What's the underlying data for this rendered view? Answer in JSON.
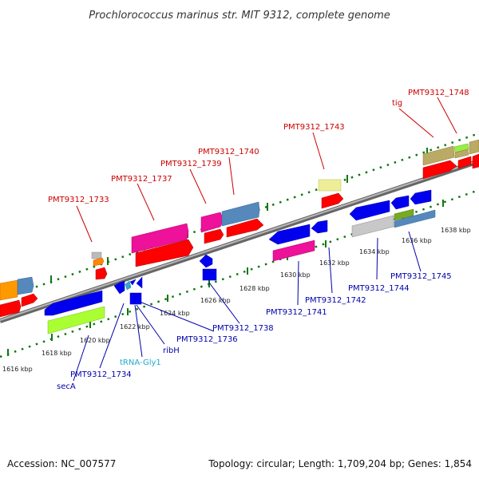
{
  "title": "Prochlorococcus marinus str. MIT 9312, complete genome",
  "footer": {
    "accession": "Accession: NC_007577",
    "summary": "Topology: circular; Length: 1,709,204 bp; Genes: 1,854"
  },
  "colors": {
    "forward_label": "#cc0000",
    "reverse_label": "#0000aa",
    "trna_label": "#22aacc",
    "backbone": "#888888",
    "tick": "#117711"
  },
  "ticks": [
    "1616 kbp",
    "1618 kbp",
    "1620 kbp",
    "1622 kbp",
    "1624 kbp",
    "1626 kbp",
    "1628 kbp",
    "1630 kbp",
    "1632 kbp",
    "1634 kbp",
    "1636 kbp",
    "1638 kbp"
  ],
  "forward_labels": [
    "PMT9312_1733",
    "PMT9312_1737",
    "PMT9312_1739",
    "PMT9312_1740",
    "PMT9312_1743",
    "tig",
    "PMT9312_1748"
  ],
  "reverse_labels": [
    "secA",
    "PMT9312_1734",
    "tRNA-Gly1",
    "ribH",
    "PMT9312_1736",
    "PMT9312_1738",
    "PMT9312_1741",
    "PMT9312_1742",
    "PMT9312_1744",
    "PMT9312_1745"
  ]
}
